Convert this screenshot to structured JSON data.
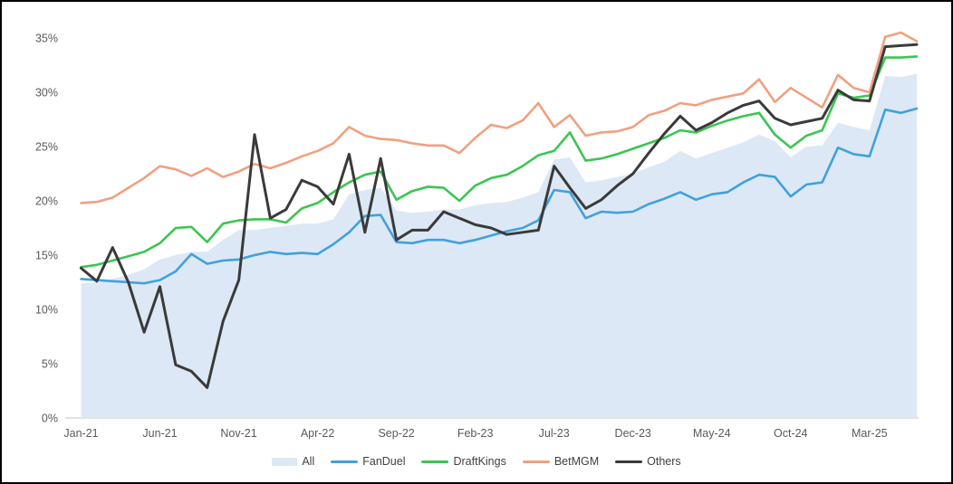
{
  "chart_data": {
    "type": "area+line",
    "title": "",
    "xlabel": "",
    "ylabel": "",
    "ylim": [
      0,
      35
    ],
    "grid": "off",
    "legend_position": "bottom-center",
    "axis_label_color": "#595959",
    "axis_line_color": "#D9D9D9",
    "y_tick_labels": [
      "0%",
      "5%",
      "10%",
      "15%",
      "20%",
      "25%",
      "30%",
      "35%"
    ],
    "y_tick_values": [
      0,
      5,
      10,
      15,
      20,
      25,
      30,
      35
    ],
    "x": [
      "Jan-21",
      "Feb-21",
      "Mar-21",
      "Apr-21",
      "May-21",
      "Jun-21",
      "Jul-21",
      "Aug-21",
      "Sep-21",
      "Oct-21",
      "Nov-21",
      "Dec-21",
      "Jan-22",
      "Feb-22",
      "Mar-22",
      "Apr-22",
      "May-22",
      "Jun-22",
      "Jul-22",
      "Aug-22",
      "Sep-22",
      "Oct-22",
      "Nov-22",
      "Dec-22",
      "Jan-23",
      "Feb-23",
      "Mar-23",
      "Apr-23",
      "May-23",
      "Jun-23",
      "Jul-23",
      "Aug-23",
      "Sep-23",
      "Oct-23",
      "Nov-23",
      "Dec-23",
      "Jan-24",
      "Feb-24",
      "Mar-24",
      "Apr-24",
      "May-24",
      "Jun-24",
      "Jul-24",
      "Aug-24",
      "Sep-24",
      "Oct-24",
      "Nov-24",
      "Dec-24",
      "Jan-25",
      "Feb-25",
      "Mar-25",
      "Apr-25",
      "May-25",
      "Jun-25"
    ],
    "x_tick_indices": [
      0,
      5,
      10,
      15,
      20,
      25,
      30,
      35,
      40,
      45,
      50
    ],
    "x_tick_labels": [
      "Jan-21",
      "Jun-21",
      "Nov-21",
      "Apr-22",
      "Sep-22",
      "Feb-23",
      "Jul-23",
      "Dec-23",
      "May-24",
      "Oct-24",
      "Mar-25"
    ],
    "series": [
      {
        "name": "All",
        "type": "area",
        "color": "#DCE8F5",
        "values": [
          12.4,
          12.5,
          12.8,
          13.2,
          13.7,
          14.6,
          15.0,
          15.3,
          15.3,
          16.4,
          17.3,
          17.3,
          17.5,
          17.7,
          17.9,
          17.9,
          18.3,
          20.6,
          21.0,
          21.2,
          19.1,
          18.9,
          19.0,
          19.2,
          19.2,
          19.6,
          19.8,
          19.9,
          20.3,
          20.8,
          23.8,
          24.0,
          21.7,
          21.9,
          22.2,
          22.5,
          23.1,
          23.6,
          24.6,
          23.9,
          24.4,
          24.9,
          25.4,
          26.1,
          25.5,
          24.0,
          25.0,
          25.1,
          27.2,
          26.8,
          26.5,
          31.5,
          31.4,
          31.7
        ]
      },
      {
        "name": "FanDuel",
        "type": "line",
        "color": "#41A1DC",
        "values": [
          12.8,
          12.7,
          12.6,
          12.5,
          12.4,
          12.7,
          13.5,
          15.1,
          14.2,
          14.5,
          14.6,
          15.0,
          15.3,
          15.1,
          15.2,
          15.1,
          16.0,
          17.1,
          18.6,
          18.7,
          16.2,
          16.1,
          16.4,
          16.4,
          16.1,
          16.4,
          16.8,
          17.2,
          17.5,
          18.2,
          21.0,
          20.8,
          18.4,
          19.0,
          18.9,
          19.0,
          19.7,
          20.2,
          20.8,
          20.1,
          20.6,
          20.8,
          21.7,
          22.4,
          22.2,
          20.4,
          21.5,
          21.7,
          24.9,
          24.3,
          24.1,
          28.4,
          28.1,
          28.5
        ]
      },
      {
        "name": "DraftKings",
        "type": "line",
        "color": "#3CC552",
        "values": [
          13.9,
          14.1,
          14.5,
          14.9,
          15.3,
          16.1,
          17.5,
          17.6,
          16.2,
          17.9,
          18.2,
          18.3,
          18.3,
          18.0,
          19.3,
          19.8,
          20.8,
          21.7,
          22.4,
          22.7,
          20.1,
          20.9,
          21.3,
          21.2,
          20.0,
          21.4,
          22.1,
          22.4,
          23.2,
          24.2,
          24.6,
          26.3,
          23.7,
          23.9,
          24.3,
          24.8,
          25.3,
          25.8,
          26.5,
          26.3,
          26.9,
          27.4,
          27.8,
          28.1,
          26.1,
          24.9,
          26.0,
          26.5,
          29.9,
          29.5,
          29.7,
          33.2,
          33.2,
          33.3
        ]
      },
      {
        "name": "BetMGM",
        "type": "line",
        "color": "#F0A080",
        "values": [
          19.8,
          19.9,
          20.3,
          21.2,
          22.1,
          23.2,
          22.9,
          22.3,
          23.0,
          22.2,
          22.7,
          23.4,
          23.0,
          23.5,
          24.1,
          24.6,
          25.3,
          26.8,
          26.0,
          25.7,
          25.6,
          25.3,
          25.1,
          25.1,
          24.4,
          25.8,
          27.0,
          26.7,
          27.4,
          29.0,
          26.8,
          27.9,
          26.0,
          26.3,
          26.4,
          26.8,
          27.9,
          28.3,
          29.0,
          28.8,
          29.3,
          29.6,
          29.9,
          31.2,
          29.1,
          30.4,
          29.5,
          28.6,
          31.6,
          30.4,
          30.0,
          35.1,
          35.5,
          34.7
        ]
      },
      {
        "name": "Others",
        "type": "line",
        "color": "#3A3A3A",
        "values": [
          13.8,
          12.6,
          15.7,
          12.5,
          7.9,
          12.1,
          4.9,
          4.3,
          2.8,
          8.9,
          12.7,
          26.1,
          18.4,
          19.2,
          21.9,
          21.3,
          19.7,
          24.3,
          17.1,
          23.9,
          16.4,
          17.3,
          17.3,
          19.0,
          18.4,
          17.8,
          17.5,
          16.9,
          17.1,
          17.3,
          23.2,
          21.2,
          19.3,
          20.1,
          21.4,
          22.5,
          24.4,
          26.2,
          27.8,
          26.5,
          27.2,
          28.1,
          28.8,
          29.2,
          27.6,
          27.0,
          27.3,
          27.6,
          30.2,
          29.3,
          29.2,
          34.2,
          34.3,
          34.4
        ]
      }
    ]
  },
  "legend": {
    "all_label": "All",
    "fanduel_label": "FanDuel",
    "draftkings_label": "DraftKings",
    "betmgm_label": "BetMGM",
    "others_label": "Others"
  }
}
